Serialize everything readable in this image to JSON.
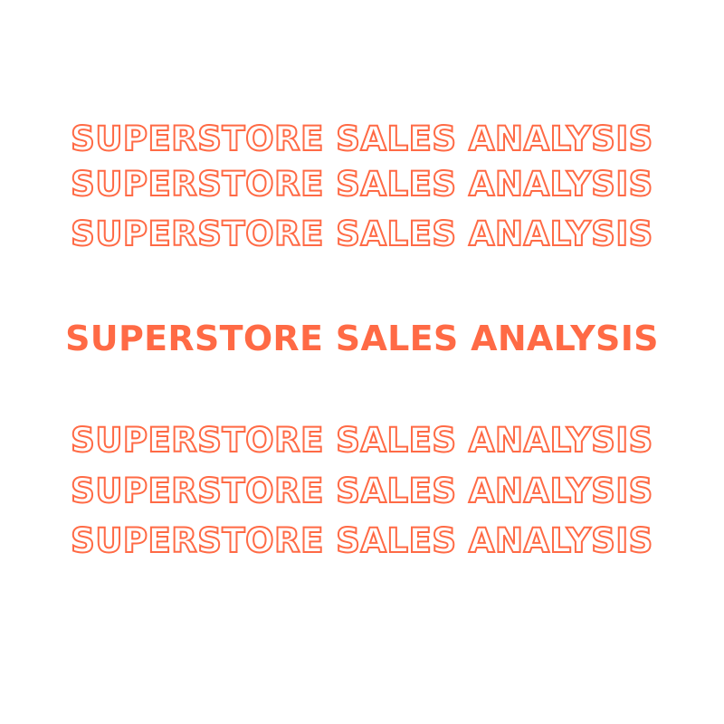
{
  "colors": {
    "accent": "#ff6a45",
    "background": "#ffffff"
  },
  "title_repeats_top": [
    "SUPERSTORE SALES ANALYSIS",
    "SUPERSTORE SALES ANALYSIS",
    "SUPERSTORE SALES ANALYSIS"
  ],
  "main_title": "SUPERSTORE SALES ANALYSIS",
  "title_repeats_bottom": [
    "SUPERSTORE SALES ANALYSIS",
    "SUPERSTORE SALES ANALYSIS",
    "SUPERSTORE SALES ANALYSIS"
  ]
}
